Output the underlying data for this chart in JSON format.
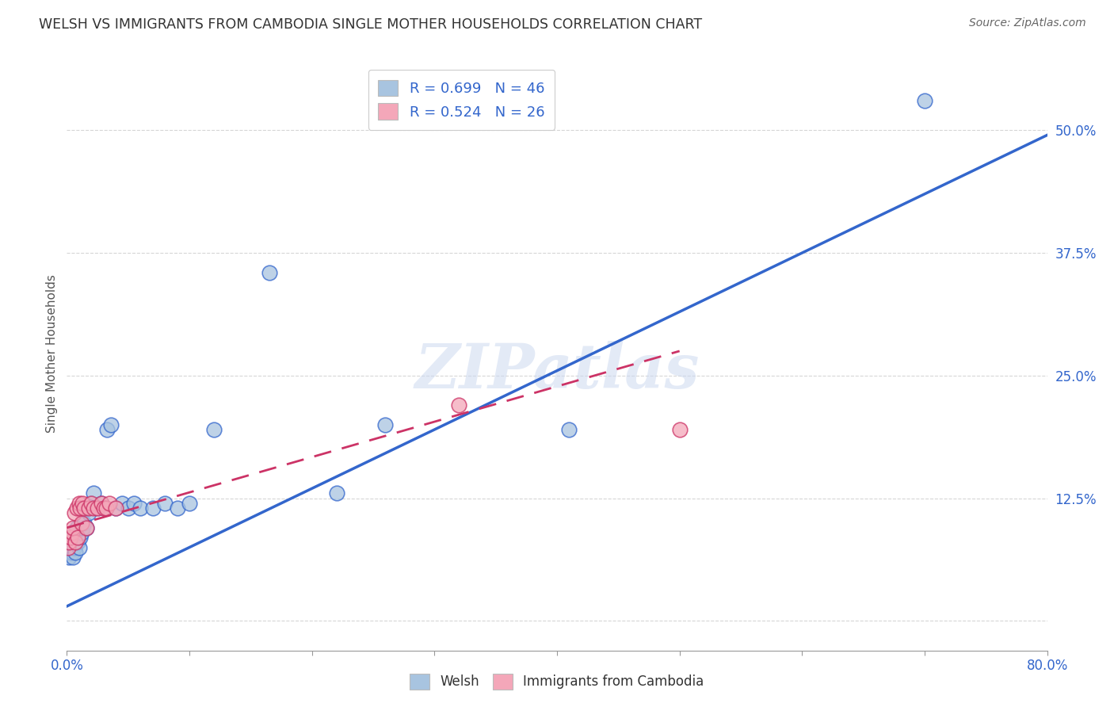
{
  "title": "WELSH VS IMMIGRANTS FROM CAMBODIA SINGLE MOTHER HOUSEHOLDS CORRELATION CHART",
  "source": "Source: ZipAtlas.com",
  "ylabel": "Single Mother Households",
  "xlim": [
    0.0,
    0.8
  ],
  "ylim": [
    -0.03,
    0.575
  ],
  "xticks": [
    0.0,
    0.1,
    0.2,
    0.3,
    0.4,
    0.5,
    0.6,
    0.7,
    0.8
  ],
  "xticklabels": [
    "0.0%",
    "",
    "",
    "",
    "",
    "",
    "",
    "",
    "80.0%"
  ],
  "ytick_positions": [
    0.0,
    0.125,
    0.25,
    0.375,
    0.5
  ],
  "ytick_labels": [
    "",
    "12.5%",
    "25.0%",
    "37.5%",
    "50.0%"
  ],
  "welsh_color": "#a8c4e0",
  "cambodia_color": "#f4a7b9",
  "welsh_line_color": "#3366cc",
  "cambodia_line_color": "#cc3366",
  "legend_welsh_label": "R = 0.699   N = 46",
  "legend_cambodia_label": "R = 0.524   N = 26",
  "watermark": "ZIPatlas",
  "grid_color": "#cccccc",
  "background_color": "#ffffff",
  "welsh_scatter_x": [
    0.001,
    0.002,
    0.002,
    0.003,
    0.003,
    0.004,
    0.004,
    0.005,
    0.005,
    0.006,
    0.006,
    0.007,
    0.007,
    0.008,
    0.009,
    0.01,
    0.011,
    0.012,
    0.013,
    0.014,
    0.015,
    0.016,
    0.017,
    0.018,
    0.02,
    0.022,
    0.025,
    0.028,
    0.03,
    0.033,
    0.036,
    0.04,
    0.045,
    0.05,
    0.055,
    0.06,
    0.07,
    0.08,
    0.09,
    0.1,
    0.12,
    0.165,
    0.22,
    0.26,
    0.41,
    0.7
  ],
  "welsh_scatter_y": [
    0.07,
    0.08,
    0.065,
    0.075,
    0.085,
    0.07,
    0.09,
    0.08,
    0.065,
    0.075,
    0.085,
    0.09,
    0.07,
    0.095,
    0.08,
    0.075,
    0.085,
    0.09,
    0.095,
    0.1,
    0.115,
    0.095,
    0.115,
    0.11,
    0.12,
    0.13,
    0.115,
    0.12,
    0.115,
    0.195,
    0.2,
    0.115,
    0.12,
    0.115,
    0.12,
    0.115,
    0.115,
    0.12,
    0.115,
    0.12,
    0.195,
    0.355,
    0.13,
    0.2,
    0.195,
    0.53
  ],
  "cambodia_scatter_x": [
    0.001,
    0.002,
    0.003,
    0.004,
    0.005,
    0.006,
    0.007,
    0.008,
    0.009,
    0.01,
    0.011,
    0.012,
    0.013,
    0.014,
    0.016,
    0.018,
    0.02,
    0.022,
    0.025,
    0.028,
    0.03,
    0.032,
    0.035,
    0.04,
    0.32,
    0.5
  ],
  "cambodia_scatter_y": [
    0.075,
    0.08,
    0.085,
    0.09,
    0.095,
    0.11,
    0.08,
    0.115,
    0.085,
    0.12,
    0.115,
    0.1,
    0.12,
    0.115,
    0.095,
    0.115,
    0.12,
    0.115,
    0.115,
    0.12,
    0.115,
    0.115,
    0.12,
    0.115,
    0.22,
    0.195
  ],
  "welsh_line_x": [
    0.0,
    0.8
  ],
  "welsh_line_y": [
    0.015,
    0.495
  ],
  "cambodia_line_x": [
    0.0,
    0.5
  ],
  "cambodia_line_y": [
    0.095,
    0.275
  ],
  "legend_fontsize": 13,
  "title_fontsize": 12.5,
  "axis_label_fontsize": 11,
  "tick_fontsize": 12
}
